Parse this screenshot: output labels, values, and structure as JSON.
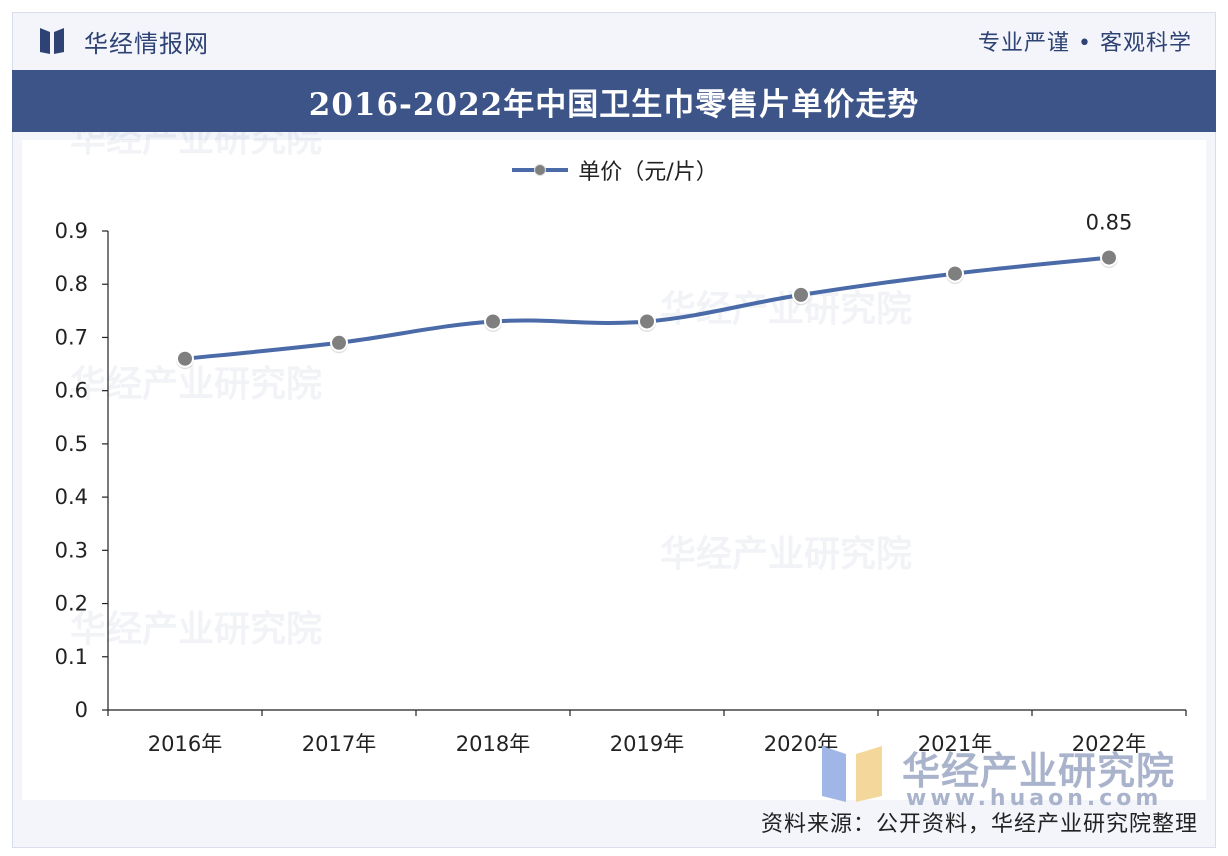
{
  "header": {
    "brand": "华经情报网",
    "slogan": "专业严谨 • 客观科学"
  },
  "footer": {
    "source": "资料来源：公开资料，华经产业研究院整理",
    "watermark_cn": "华经产业研究院",
    "watermark_url": "www.huaon.com"
  },
  "colors": {
    "title_band": "#3d5488",
    "series_line": "#4a6aa8",
    "marker": "#7f7f7f"
  },
  "chart_data": {
    "type": "line",
    "title": "2016-2022年中国卫生巾零售片单价走势",
    "categories": [
      "2016年",
      "2017年",
      "2018年",
      "2019年",
      "2020年",
      "2021年",
      "2022年"
    ],
    "series": [
      {
        "name": "单价（元/片）",
        "values": [
          0.66,
          0.69,
          0.73,
          0.73,
          0.78,
          0.82,
          0.85
        ]
      }
    ],
    "data_labels": [
      {
        "category": "2022年",
        "label": "0.85"
      }
    ],
    "ylim": [
      0,
      0.9
    ],
    "yticks": [
      "0",
      "0.1",
      "0.2",
      "0.3",
      "0.4",
      "0.5",
      "0.6",
      "0.7",
      "0.8",
      "0.9"
    ],
    "xlabel": "",
    "ylabel": "",
    "legend_position": "top-center",
    "grid": false
  }
}
